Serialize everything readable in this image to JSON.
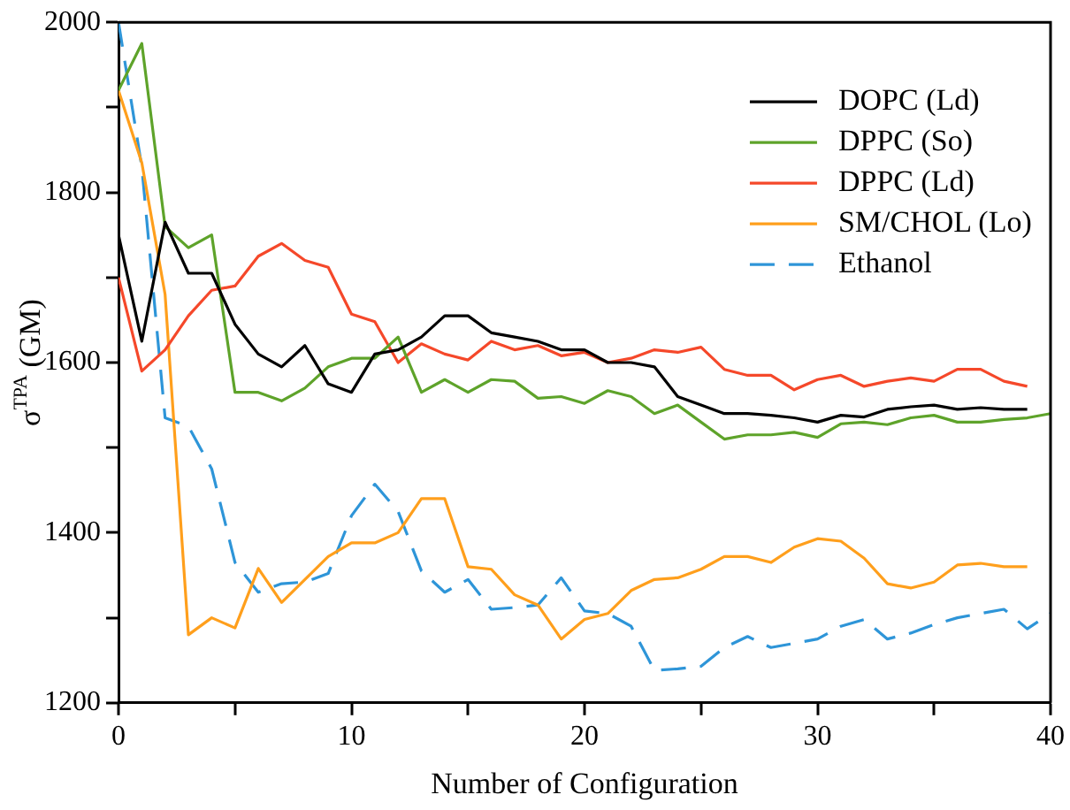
{
  "chart_data": {
    "type": "line",
    "xlabel": "Number of Configuration",
    "ylabel": "σ$^{TPA}$ (GM)",
    "xlim": [
      0,
      40
    ],
    "xticks": [
      0,
      {
        "value": 5,
        "label": null
      },
      10,
      {
        "value": 15,
        "label": null
      },
      20,
      {
        "value": 25,
        "label": null
      },
      30,
      {
        "value": 35,
        "label": null
      },
      40
    ],
    "ylim": [
      1200,
      2000
    ],
    "yticks": [
      1200,
      {
        "value": 1300,
        "label": null
      },
      1400,
      {
        "value": 1500,
        "label": null
      },
      1600,
      {
        "value": 1700,
        "label": null
      },
      1800,
      {
        "value": 1900,
        "label": null
      },
      2000
    ],
    "grid": false,
    "legend": "top right",
    "marker": "none",
    "series": [
      {
        "name": "DOPC (Ld)",
        "color": "#000000",
        "x": [
          0,
          1,
          2,
          3,
          4,
          5,
          6,
          7,
          8,
          9,
          10,
          11,
          12,
          13,
          14,
          15,
          16,
          17,
          18,
          19,
          20,
          21,
          22,
          23,
          24,
          25,
          26,
          27,
          28,
          29,
          30,
          31,
          32,
          33,
          34,
          35,
          36,
          37,
          38,
          39
        ],
        "values": [
          1750,
          1625,
          1765,
          1705,
          1705,
          1645,
          1610,
          1595,
          1620,
          1575,
          1565,
          1610,
          1615,
          1630,
          1655,
          1655,
          1635,
          1630,
          1625,
          1615,
          1615,
          1600,
          1600,
          1595,
          1560,
          1550,
          1540,
          1540,
          1538,
          1535,
          1530,
          1538,
          1536,
          1545,
          1548,
          1550,
          1545,
          1547,
          1545,
          1545
        ]
      },
      {
        "name": "DPPC (So)",
        "color": "#5ea32a",
        "x": [
          0,
          1,
          2,
          3,
          4,
          5,
          6,
          7,
          8,
          9,
          10,
          11,
          12,
          13,
          14,
          15,
          16,
          17,
          18,
          19,
          20,
          21,
          22,
          23,
          24,
          25,
          26,
          27,
          28,
          29,
          30,
          31,
          32,
          33,
          34,
          35,
          36,
          37,
          38,
          39,
          40
        ],
        "values": [
          1920,
          1975,
          1760,
          1735,
          1750,
          1565,
          1565,
          1555,
          1570,
          1595,
          1605,
          1605,
          1630,
          1565,
          1580,
          1565,
          1580,
          1578,
          1558,
          1560,
          1552,
          1567,
          1560,
          1540,
          1550,
          1530,
          1510,
          1515,
          1515,
          1518,
          1512,
          1528,
          1530,
          1527,
          1535,
          1538,
          1530,
          1530,
          1533,
          1535,
          1540
        ]
      },
      {
        "name": "DPPC (Ld)",
        "color": "#f5482a",
        "x": [
          0,
          1,
          2,
          3,
          4,
          5,
          6,
          7,
          8,
          9,
          10,
          11,
          12,
          13,
          14,
          15,
          16,
          17,
          18,
          19,
          20,
          21,
          22,
          23,
          24,
          25,
          26,
          27,
          28,
          29,
          30,
          31,
          32,
          33,
          34,
          35,
          36,
          37,
          38,
          39
        ],
        "values": [
          1700,
          1590,
          1615,
          1655,
          1685,
          1690,
          1725,
          1740,
          1720,
          1712,
          1657,
          1648,
          1600,
          1622,
          1610,
          1603,
          1625,
          1615,
          1620,
          1608,
          1612,
          1600,
          1605,
          1615,
          1612,
          1618,
          1592,
          1585,
          1585,
          1568,
          1580,
          1585,
          1572,
          1578,
          1582,
          1578,
          1592,
          1592,
          1578,
          1572
        ]
      },
      {
        "name": "SM/CHOL (Lo)",
        "color": "#ff9f1c",
        "x": [
          0,
          1,
          2,
          3,
          4,
          5,
          6,
          7,
          8,
          9,
          10,
          11,
          12,
          13,
          14,
          15,
          16,
          17,
          18,
          19,
          20,
          21,
          22,
          23,
          24,
          25,
          26,
          27,
          28,
          29,
          30,
          31,
          32,
          33,
          34,
          35,
          36,
          37,
          38,
          39
        ],
        "values": [
          1920,
          1835,
          1680,
          1280,
          1300,
          1288,
          1358,
          1318,
          1345,
          1372,
          1388,
          1388,
          1400,
          1440,
          1440,
          1360,
          1357,
          1327,
          1315,
          1275,
          1298,
          1305,
          1332,
          1345,
          1347,
          1357,
          1372,
          1372,
          1365,
          1383,
          1393,
          1390,
          1370,
          1340,
          1335,
          1342,
          1362,
          1364,
          1360,
          1360
        ]
      },
      {
        "name": "Ethanol",
        "color": "#2e95d8",
        "line_style": "dashed",
        "x": [
          0,
          1,
          2,
          3,
          4,
          5,
          6,
          7,
          8,
          9,
          10,
          11,
          12,
          13,
          14,
          15,
          16,
          17,
          18,
          19,
          20,
          21,
          22,
          23,
          24,
          25,
          26,
          27,
          28,
          29,
          30,
          31,
          32,
          33,
          34,
          35,
          36,
          37,
          38,
          39,
          40
        ],
        "values": [
          2000,
          1830,
          1535,
          1525,
          1475,
          1365,
          1330,
          1340,
          1342,
          1352,
          1420,
          1457,
          1425,
          1355,
          1330,
          1345,
          1310,
          1312,
          1315,
          1347,
          1308,
          1305,
          1290,
          1238,
          1240,
          1243,
          1265,
          1278,
          1265,
          1270,
          1275,
          1290,
          1298,
          1275,
          1282,
          1292,
          1300,
          1305,
          1310,
          1287,
          1305
        ]
      }
    ]
  }
}
